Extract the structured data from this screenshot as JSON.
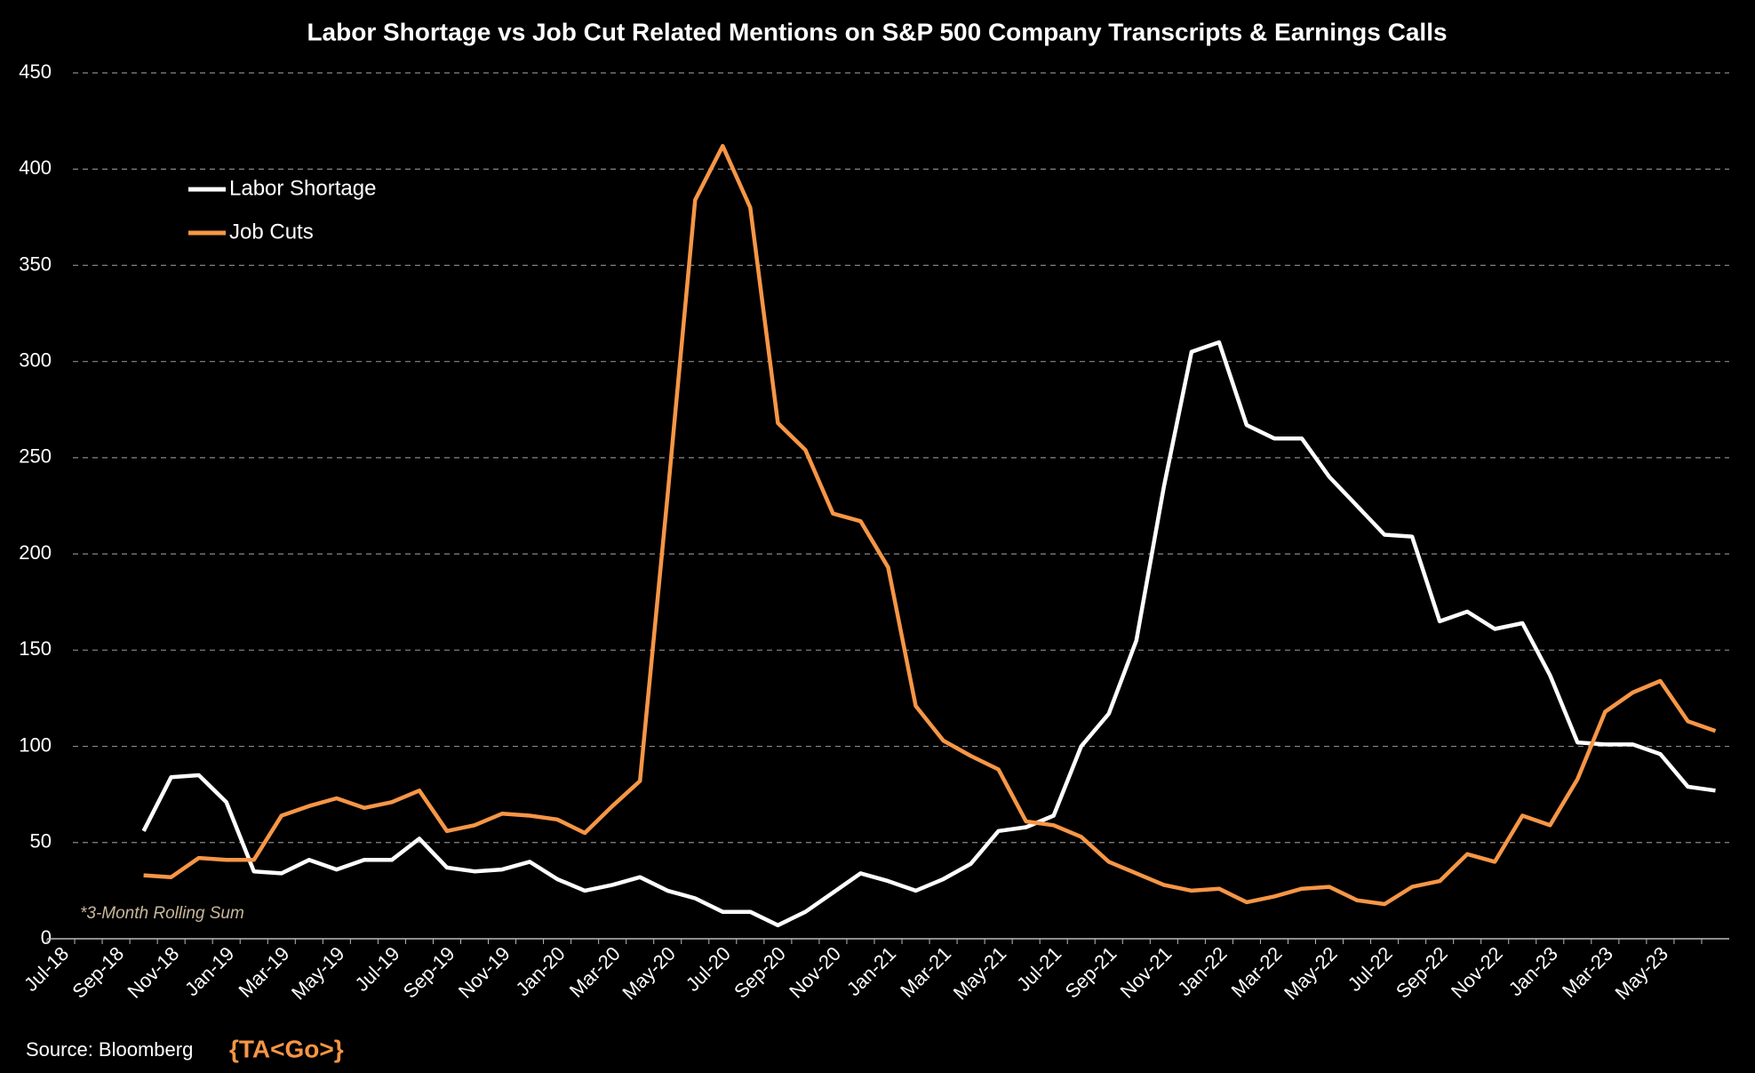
{
  "chart_data": {
    "type": "line",
    "title": "Labor Shortage vs Job Cut Related Mentions on S&P 500 Company Transcripts & Earnings Calls",
    "categories": [
      "Jul-18",
      null,
      "Sep-18",
      null,
      "Nov-18",
      null,
      "Jan-19",
      null,
      "Mar-19",
      null,
      "May-19",
      null,
      "Jul-19",
      null,
      "Sep-19",
      null,
      "Nov-19",
      null,
      "Jan-20",
      null,
      "Mar-20",
      null,
      "May-20",
      null,
      "Jul-20",
      null,
      "Sep-20",
      null,
      "Nov-20",
      null,
      "Jan-21",
      null,
      "Mar-21",
      null,
      "May-21",
      null,
      "Jul-21",
      null,
      "Sep-21",
      null,
      "Nov-21",
      null,
      "Jan-22",
      null,
      "Mar-22",
      null,
      "May-22",
      null,
      "Jul-22",
      null,
      "Sep-22",
      null,
      "Nov-22",
      null,
      "Jan-23",
      null,
      "Mar-23",
      null,
      "May-23",
      null,
      null
    ],
    "series": [
      {
        "name": "Labor Shortage",
        "color": "#ffffff",
        "values": [
          null,
          null,
          null,
          56,
          84,
          85,
          71,
          35,
          34,
          41,
          36,
          41,
          41,
          52,
          37,
          35,
          36,
          40,
          31,
          25,
          28,
          32,
          25,
          21,
          14,
          14,
          7,
          14,
          24,
          34,
          30,
          25,
          31,
          39,
          56,
          58,
          64,
          100,
          117,
          155,
          235,
          305,
          310,
          267,
          260,
          260,
          240,
          225,
          210,
          209,
          165,
          170,
          161,
          164,
          137,
          102,
          101,
          101,
          96,
          79,
          77
        ]
      },
      {
        "name": "Job Cuts",
        "color": "#f79646",
        "values": [
          null,
          null,
          null,
          33,
          32,
          42,
          41,
          41,
          64,
          69,
          73,
          68,
          71,
          77,
          56,
          59,
          65,
          64,
          62,
          55,
          69,
          82,
          230,
          384,
          412,
          380,
          268,
          254,
          221,
          217,
          193,
          121,
          103,
          95,
          88,
          61,
          59,
          53,
          40,
          34,
          28,
          25,
          26,
          19,
          22,
          26,
          27,
          20,
          18,
          27,
          30,
          44,
          40,
          64,
          59,
          83,
          118,
          128,
          134,
          113,
          108
        ]
      }
    ],
    "ylim": [
      0,
      450
    ],
    "yticks": [
      0,
      50,
      100,
      150,
      200,
      250,
      300,
      350,
      400,
      450
    ],
    "grid": true,
    "legend": "upper left",
    "annotation": "*3-Month Rolling Sum",
    "source": "Source: Bloomberg",
    "logo": "{TA<Go>}"
  }
}
